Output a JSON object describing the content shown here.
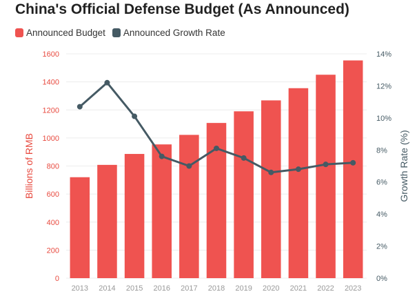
{
  "colors": {
    "budget": "#ef5350",
    "growth": "#455a64",
    "left_axis_text": "#e84a3f",
    "right_axis_text": "#455a64",
    "grid": "#ececec",
    "x_tick_text": "#999999"
  },
  "chart_data": {
    "type": "bar",
    "title": "China's Official Defense Budget (As Announced)",
    "categories": [
      "2013",
      "2014",
      "2015",
      "2016",
      "2017",
      "2018",
      "2019",
      "2020",
      "2021",
      "2022",
      "2023"
    ],
    "series": [
      {
        "name": "Announced Budget",
        "type": "bar",
        "axis": "left",
        "values": [
          720,
          808,
          886,
          954,
          1022,
          1107,
          1190,
          1268,
          1355,
          1451,
          1553
        ]
      },
      {
        "name": "Announced Growth Rate",
        "type": "line",
        "axis": "right",
        "values": [
          10.7,
          12.2,
          10.1,
          7.6,
          7.0,
          8.1,
          7.5,
          6.6,
          6.8,
          7.1,
          7.2
        ]
      }
    ],
    "ylabel": "Billions of RMB",
    "y2label": "Growth Rate (%)",
    "ylim": [
      0,
      1600
    ],
    "y2lim": [
      0,
      14
    ],
    "yticks": [
      "0",
      "200",
      "400",
      "600",
      "800",
      "1000",
      "1200",
      "1400",
      "1600"
    ],
    "y2ticks": [
      "0%",
      "2%",
      "4%",
      "6%",
      "8%",
      "10%",
      "12%",
      "14%"
    ],
    "grid": true,
    "legend_position": "top-left"
  }
}
